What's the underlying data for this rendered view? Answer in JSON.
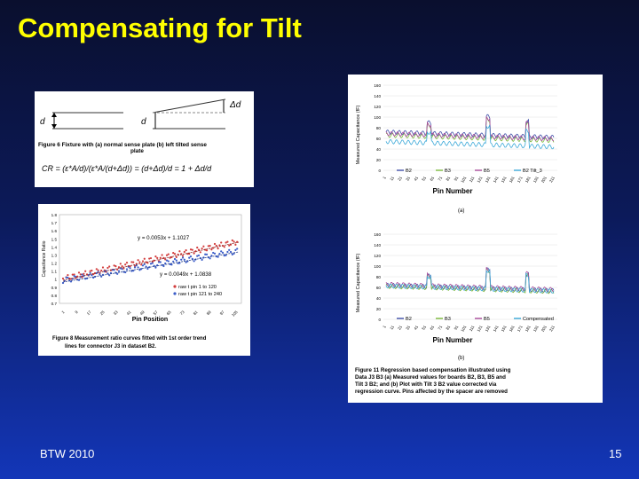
{
  "slide": {
    "title": "Compensating for Tilt",
    "footer_left": "BTW 2010",
    "page_number": "15"
  },
  "figure6": {
    "label_d_left": "d",
    "label_d_right": "d",
    "label_delta_d": "Δd",
    "caption_line1": "Figure 6 Fixture with (a) normal sense plate (b) left tilted sense",
    "caption_line2": "plate",
    "formula": "CR = (ε*A/d)/(ε*A/(d+Δd)) = (d+Δd)/d = 1 + Δd/d"
  },
  "figure8": {
    "y_axis_label": "Capacitance Ratio",
    "x_axis_label": "Pin Position",
    "y_ticks": [
      "0.7",
      "0.8",
      "0.9",
      "1",
      "1.1",
      "1.2",
      "1.3",
      "1.4",
      "1.5",
      "1.6",
      "1.7",
      "1.8"
    ],
    "x_ticks": [
      "1",
      "9",
      "17",
      "25",
      "33",
      "41",
      "49",
      "57",
      "65",
      "73",
      "81",
      "89",
      "97",
      "105"
    ],
    "eq_upper": "y = 0.0053x + 1.1027",
    "eq_lower": "y = 0.0049x + 1.0838",
    "legend_1": "raw t pin 1 to 120",
    "legend_2": "raw t pin 121 to 240",
    "caption_line1": "Figure 8  Measurement ratio curves fitted with 1st order trend",
    "caption_line2": "lines for connector J3 in dataset B2.",
    "colors": {
      "series1": "#d23c3c",
      "series2": "#3a5cc8"
    }
  },
  "figure11": {
    "y_axis_label": "Measured Capacitance (fF)",
    "x_axis_label": "Pin Number",
    "y_ticks": [
      "0",
      "20",
      "40",
      "60",
      "80",
      "100",
      "120",
      "140",
      "160"
    ],
    "x_ticks": [
      "1",
      "11",
      "21",
      "31",
      "41",
      "51",
      "61",
      "71",
      "81",
      "91",
      "101",
      "111",
      "121",
      "131",
      "141",
      "151",
      "161",
      "171",
      "181",
      "191",
      "201",
      "211"
    ],
    "legend_a": [
      "B2",
      "B3",
      "B5",
      "B2 Tilt_3"
    ],
    "legend_b": [
      "B2",
      "B3",
      "B5",
      "Compensated"
    ],
    "label_a": "(a)",
    "label_b": "(b)",
    "caption_line1": "Figure 11  Regression based compensation illustrated using",
    "caption_line2": "Data J3 B3 (a) Measured values for boards B2, B3, B5 and",
    "caption_line3": "Tilt 3 B2;  and (b) Plot with Tilt 3 B2 value corrected via",
    "caption_line4": "regression curve.  Pins affected by the spacer are removed",
    "colors": {
      "b2": "#3f4fa8",
      "b3": "#7ab83a",
      "b5": "#a84a9a",
      "tilt": "#3aa8d8"
    }
  }
}
